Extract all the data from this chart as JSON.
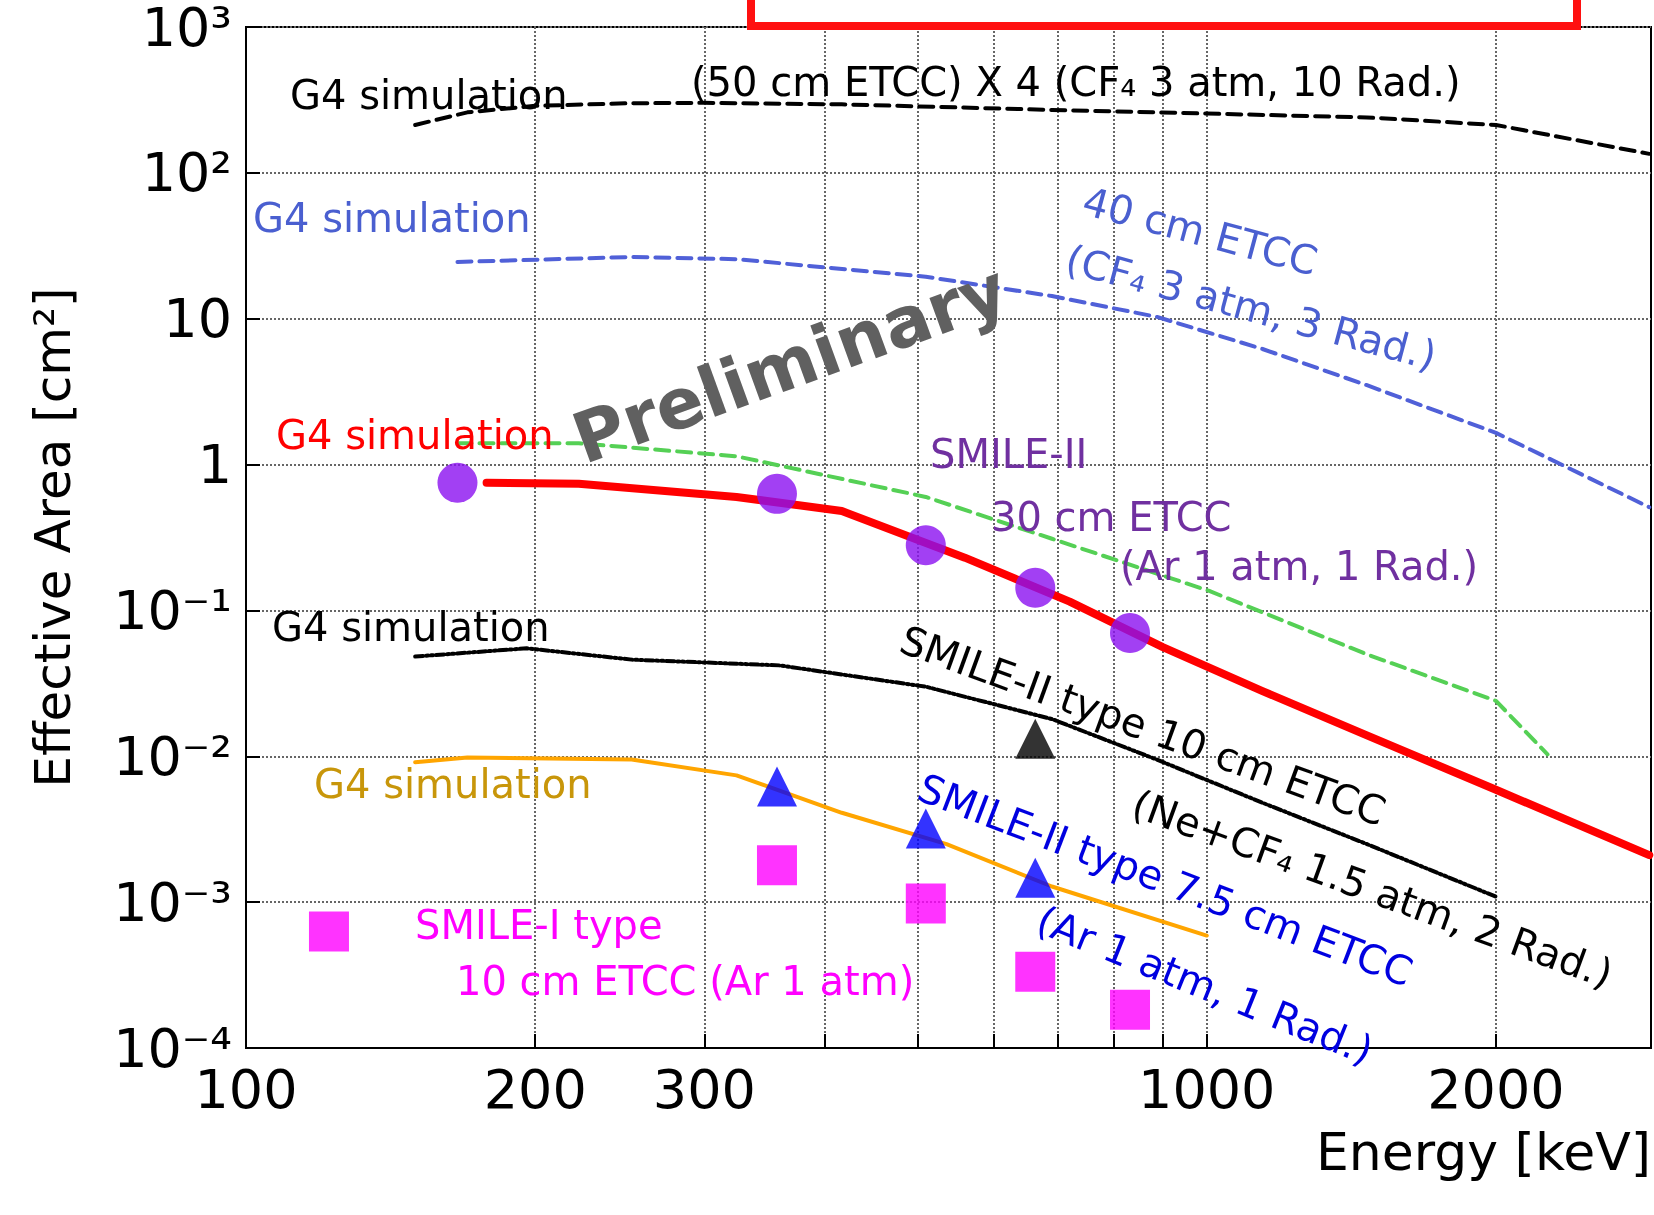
{
  "chart_data": {
    "type": "line",
    "xlabel": "Energy [keV]",
    "ylabel": "Effective Area [cm²]",
    "log": "xy",
    "grid": true,
    "xlim": [
      100,
      2900
    ],
    "ylim": [
      0.0001,
      1000
    ],
    "xticks": [
      100,
      200,
      300,
      {
        "value": 400,
        "label": null
      },
      {
        "value": 500,
        "label": null
      },
      {
        "value": 600,
        "label": null
      },
      {
        "value": 700,
        "label": null
      },
      {
        "value": 800,
        "label": null
      },
      {
        "value": 900,
        "label": null
      },
      1000,
      2000
    ],
    "yticks": [
      {
        "value": 0.0001,
        "label": "10⁻⁴"
      },
      {
        "value": 0.001,
        "label": "10⁻³"
      },
      {
        "value": 0.01,
        "label": "10⁻²"
      },
      {
        "value": 0.1,
        "label": "10⁻¹"
      },
      1,
      10,
      {
        "value": 100,
        "label": "10²"
      },
      {
        "value": 1000,
        "label": "10³"
      }
    ],
    "series": [
      {
        "color": "#000000",
        "line_style": "dashed",
        "marker": "none",
        "x": [
          150,
          170,
          200,
          250,
          300,
          417,
          690,
          1000,
          1468,
          2000,
          2888
        ],
        "values": [
          213,
          260,
          288,
          300,
          302,
          295,
          270,
          255,
          240,
          213,
          135
        ]
      },
      {
        "color": "#5060d8",
        "line_style": "dashed",
        "marker": "none",
        "x": [
          166,
          252,
          324,
          510,
          690,
          887,
          1143,
          1468,
          2000,
          2888
        ],
        "values": [
          24.5,
          26.5,
          25.6,
          19.4,
          14.3,
          10.3,
          6.2,
          3.5,
          1.65,
          0.51
        ]
      },
      {
        "color": "#55d055",
        "line_style": "dashed",
        "marker": "none",
        "x": [
          166,
          222,
          324,
          510,
          690,
          1006,
          1468,
          2000,
          2263
        ],
        "values": [
          1.4,
          1.4,
          1.14,
          0.6,
          0.31,
          0.136,
          0.05,
          0.024,
          0.0103
        ]
      },
      {
        "color": "#ff0000",
        "marker": "none",
        "x": [
          178,
          222,
          324,
          417,
          560,
          720,
          900,
          1143,
          1468,
          2000,
          2888
        ],
        "values": [
          0.75,
          0.74,
          0.6,
          0.48,
          0.23,
          0.115,
          0.056,
          0.028,
          0.0139,
          0.0059,
          0.0021
        ]
      },
      {
        "type": "scatter",
        "color": "#8b10f0",
        "marker": "circle",
        "x": [
          166,
          357,
          510,
          663,
          832
        ],
        "values": [
          0.75,
          0.63,
          0.28,
          0.143,
          0.07
        ]
      },
      {
        "color": "#000000",
        "line_style": "dotted",
        "marker": "none",
        "x": [
          150,
          196,
          252,
          359,
          510,
          690,
          887,
          1143,
          1468,
          2000
        ],
        "values": [
          0.0483,
          0.055,
          0.046,
          0.042,
          0.03,
          0.018,
          0.0095,
          0.0048,
          0.0025,
          0.00109
        ]
      },
      {
        "type": "scatter",
        "color": "#000000",
        "marker": "triangle",
        "x": [
          663
        ],
        "values": [
          0.0132
        ]
      },
      {
        "color": "#ffa500",
        "marker": "none",
        "x": [
          150,
          170,
          252,
          324,
          417,
          536,
          690,
          1000
        ],
        "values": [
          0.0091,
          0.0098,
          0.0095,
          0.0074,
          0.0041,
          0.0025,
          0.00128,
          0.00059
        ]
      },
      {
        "type": "scatter",
        "color": "#0000ff",
        "marker": "triangle",
        "x": [
          357,
          510,
          663
        ],
        "values": [
          0.0062,
          0.0032,
          0.00147
        ]
      },
      {
        "type": "scatter",
        "color": "#ff00ff",
        "marker": "square",
        "x": [
          122,
          357,
          510,
          663,
          832
        ],
        "values": [
          0.00063,
          0.00179,
          0.00098,
          0.000333,
          0.000183
        ]
      }
    ],
    "annotations": [
      "G4 simulation",
      "(50 cm ETCC) X 4 (CF₄ 3 atm, 10 Rad.)",
      "G4 simulation",
      "40 cm ETCC",
      "(CF₄ 3 atm, 3 Rad.)",
      "G4 simulation",
      "SMILE-II",
      "30 cm ETCC",
      "(Ar 1 atm, 1 Rad.)",
      "G4 simulation",
      "SMILE-II type 10 cm ETCC",
      "(Ne+CF₄ 1.5 atm, 2 Rad.)",
      "G4 simulation",
      "SMILE-II type 7.5 cm ETCC",
      "(Ar 1 atm, 1 Rad.)",
      "SMILE-I type",
      "10 cm ETCC (Ar 1 atm)",
      "Preliminary"
    ]
  }
}
